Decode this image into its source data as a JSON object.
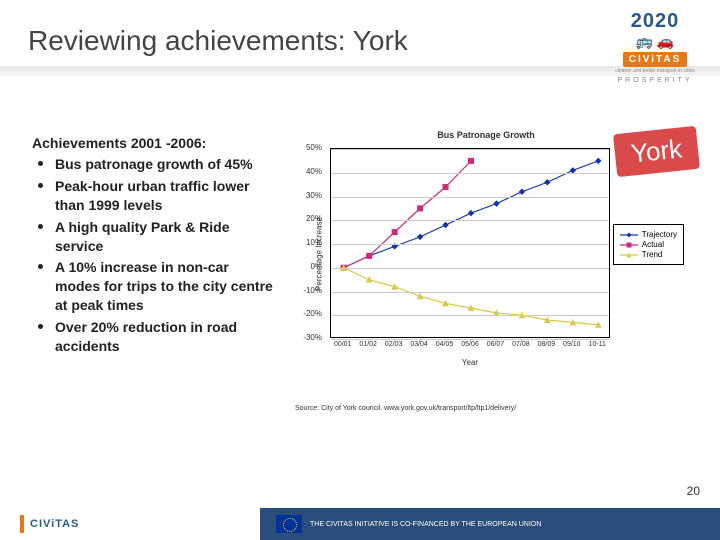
{
  "title": "Reviewing achievements: York",
  "logo": {
    "year": "2020",
    "brand": "CIViTAS",
    "subbrand": "PROSPERITY"
  },
  "achievements": {
    "heading": "Achievements 2001 -2006:",
    "items": [
      "Bus patronage growth of 45%",
      "Peak-hour urban traffic lower than 1999 levels",
      "A high quality Park & Ride service",
      "A 10% increase in non-car modes for trips to the city centre at peak times",
      "Over 20% reduction in road accidents"
    ]
  },
  "york_badge": "York",
  "chart": {
    "title": "Bus Patronage Growth",
    "type": "line",
    "ylabel": "Percentage Increase",
    "xlabel": "Year",
    "categories": [
      "00/01",
      "01/02",
      "02/03",
      "03/04",
      "04/05",
      "05/06",
      "06/07",
      "07/08",
      "08/09",
      "09/10",
      "10-11"
    ],
    "ylim": [
      -30,
      50
    ],
    "ytick_step": 10,
    "series": [
      {
        "name": "Trajectory",
        "color": "#1433a8",
        "marker": "diamond",
        "values": [
          0,
          5,
          9,
          13,
          18,
          23,
          27,
          32,
          36,
          41,
          45
        ]
      },
      {
        "name": "Actual",
        "color": "#cc2b7a",
        "marker": "square",
        "values": [
          0,
          5,
          15,
          25,
          34,
          45,
          null,
          null,
          null,
          null,
          null
        ]
      },
      {
        "name": "Trend",
        "color": "#d8c84a",
        "marker": "triangle",
        "values": [
          0,
          -5,
          -8,
          -12,
          -15,
          -17,
          -19,
          -20,
          -22,
          -23,
          -24
        ]
      }
    ],
    "background_color": "#ffffff",
    "grid_color": "#cccccc",
    "border_color": "#000000",
    "line_width": 1.2,
    "marker_size": 5,
    "label_fontsize": 8,
    "title_fontsize": 9
  },
  "source": "Source: City of York council. www.york.gov.uk/transport/ltp/ltp1/delivery/",
  "page_number": "20",
  "footer": {
    "brand": "CIViTAS",
    "text": "THE CIVITAS INITIATIVE IS CO-FINANCED BY THE EUROPEAN UNION"
  }
}
